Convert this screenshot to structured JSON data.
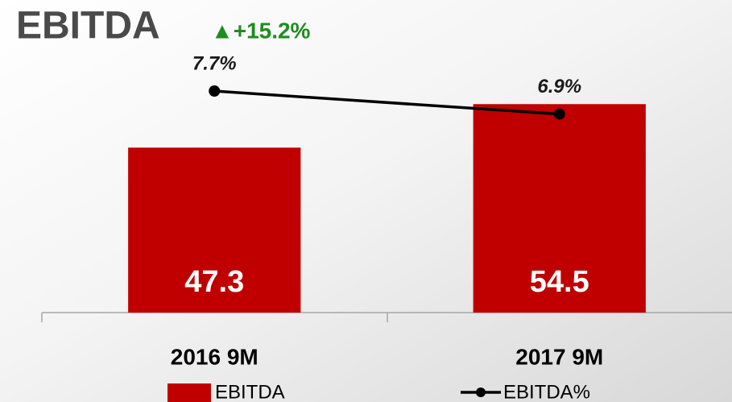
{
  "chart_data": {
    "type": "bar_line",
    "title": "EBITDA",
    "annotation": "▲+15.2%",
    "categories": [
      "2016 9M",
      "2017 9M"
    ],
    "series": [
      {
        "name": "EBITDA",
        "type": "bar",
        "color": "#c00000",
        "values": [
          47.3,
          54.5
        ]
      },
      {
        "name": "EBITDA%",
        "type": "line",
        "axis": "y2",
        "color": "#000000",
        "values": [
          7.7,
          6.9
        ],
        "value_labels": [
          "7.7%",
          "6.9%"
        ]
      }
    ],
    "ylim": [
      20,
      70
    ],
    "y2lim": [
      0,
      10.5
    ]
  }
}
